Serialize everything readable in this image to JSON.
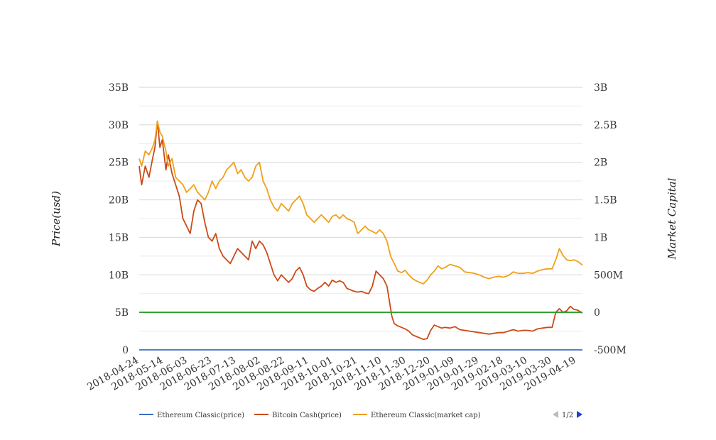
{
  "chart_data": {
    "type": "line",
    "title": "",
    "ylabel_left": "Price(usd)",
    "ylabel_right": "Market Capital",
    "x_tick_labels": [
      "2018-04-24",
      "2018-05-14",
      "2018-06-03",
      "2018-06-23",
      "2018-07-13",
      "2018-08-02",
      "2018-08-22",
      "2018-09-11",
      "2018-10-01",
      "2018-10-21",
      "2018-11-10",
      "2018-11-30",
      "2018-12-20",
      "2019-01-09",
      "2019-01-29",
      "2019-02-18",
      "2019-03-10",
      "2019-03-30",
      "2019-04-19"
    ],
    "x_range": [
      "2018-04-24",
      "2019-04-24"
    ],
    "left_axis": {
      "min": 0,
      "max": 35000000000,
      "ticks": [
        "0",
        "5B",
        "10B",
        "15B",
        "20B",
        "25B",
        "30B",
        "35B"
      ]
    },
    "right_axis": {
      "min": -500000000,
      "max": 3000000000,
      "ticks": [
        "-500M",
        "0",
        "500M",
        "1B",
        "1.5B",
        "2B",
        "2.5B",
        "3B"
      ]
    },
    "grid": true,
    "legend_position": "bottom",
    "series": [
      {
        "name": "Ethereum Classic(price)",
        "color": "#3a6fc4",
        "axis": "left",
        "points": [
          [
            "2018-04-24",
            15
          ],
          [
            "2019-04-24",
            5
          ]
        ]
      },
      {
        "name": "Bitcoin Cash(price)",
        "color": "#cc4a16",
        "axis": "left",
        "points": [
          [
            "2018-04-24",
            24500000000
          ],
          [
            "2018-04-26",
            22000000000
          ],
          [
            "2018-04-29",
            24500000000
          ],
          [
            "2018-05-02",
            23000000000
          ],
          [
            "2018-05-05",
            25500000000
          ],
          [
            "2018-05-07",
            27000000000
          ],
          [
            "2018-05-09",
            30500000000
          ],
          [
            "2018-05-11",
            27000000000
          ],
          [
            "2018-05-13",
            28000000000
          ],
          [
            "2018-05-16",
            24000000000
          ],
          [
            "2018-05-18",
            26000000000
          ],
          [
            "2018-05-21",
            23500000000
          ],
          [
            "2018-05-24",
            22000000000
          ],
          [
            "2018-05-27",
            20500000000
          ],
          [
            "2018-05-30",
            17500000000
          ],
          [
            "2018-06-02",
            16500000000
          ],
          [
            "2018-06-05",
            15500000000
          ],
          [
            "2018-06-08",
            18500000000
          ],
          [
            "2018-06-11",
            20000000000
          ],
          [
            "2018-06-14",
            19500000000
          ],
          [
            "2018-06-17",
            17000000000
          ],
          [
            "2018-06-20",
            15000000000
          ],
          [
            "2018-06-23",
            14500000000
          ],
          [
            "2018-06-26",
            15500000000
          ],
          [
            "2018-06-29",
            13500000000
          ],
          [
            "2018-07-02",
            12500000000
          ],
          [
            "2018-07-05",
            12000000000
          ],
          [
            "2018-07-08",
            11500000000
          ],
          [
            "2018-07-11",
            12500000000
          ],
          [
            "2018-07-14",
            13500000000
          ],
          [
            "2018-07-17",
            13000000000
          ],
          [
            "2018-07-20",
            12500000000
          ],
          [
            "2018-07-23",
            12000000000
          ],
          [
            "2018-07-26",
            14500000000
          ],
          [
            "2018-07-29",
            13500000000
          ],
          [
            "2018-08-01",
            14500000000
          ],
          [
            "2018-08-04",
            14000000000
          ],
          [
            "2018-08-07",
            13000000000
          ],
          [
            "2018-08-10",
            11500000000
          ],
          [
            "2018-08-13",
            10000000000
          ],
          [
            "2018-08-16",
            9200000000
          ],
          [
            "2018-08-19",
            10000000000
          ],
          [
            "2018-08-22",
            9500000000
          ],
          [
            "2018-08-25",
            9000000000
          ],
          [
            "2018-08-28",
            9500000000
          ],
          [
            "2018-08-31",
            10500000000
          ],
          [
            "2018-09-03",
            11000000000
          ],
          [
            "2018-09-06",
            10000000000
          ],
          [
            "2018-09-09",
            8500000000
          ],
          [
            "2018-09-12",
            8000000000
          ],
          [
            "2018-09-15",
            7800000000
          ],
          [
            "2018-09-18",
            8200000000
          ],
          [
            "2018-09-21",
            8500000000
          ],
          [
            "2018-09-24",
            9000000000
          ],
          [
            "2018-09-27",
            8500000000
          ],
          [
            "2018-09-30",
            9300000000
          ],
          [
            "2018-10-03",
            9000000000
          ],
          [
            "2018-10-06",
            9200000000
          ],
          [
            "2018-10-09",
            9000000000
          ],
          [
            "2018-10-12",
            8200000000
          ],
          [
            "2018-10-15",
            8000000000
          ],
          [
            "2018-10-18",
            7800000000
          ],
          [
            "2018-10-21",
            7700000000
          ],
          [
            "2018-10-24",
            7800000000
          ],
          [
            "2018-10-27",
            7600000000
          ],
          [
            "2018-10-30",
            7500000000
          ],
          [
            "2018-11-02",
            8500000000
          ],
          [
            "2018-11-05",
            10500000000
          ],
          [
            "2018-11-08",
            10000000000
          ],
          [
            "2018-11-11",
            9500000000
          ],
          [
            "2018-11-14",
            8500000000
          ],
          [
            "2018-11-16",
            6500000000
          ],
          [
            "2018-11-18",
            4500000000
          ],
          [
            "2018-11-20",
            3500000000
          ],
          [
            "2018-11-23",
            3200000000
          ],
          [
            "2018-11-26",
            3000000000
          ],
          [
            "2018-11-29",
            2800000000
          ],
          [
            "2018-12-02",
            2500000000
          ],
          [
            "2018-12-05",
            2000000000
          ],
          [
            "2018-12-08",
            1800000000
          ],
          [
            "2018-12-11",
            1600000000
          ],
          [
            "2018-12-14",
            1400000000
          ],
          [
            "2018-12-17",
            1500000000
          ],
          [
            "2018-12-20",
            2600000000
          ],
          [
            "2018-12-23",
            3300000000
          ],
          [
            "2018-12-26",
            3100000000
          ],
          [
            "2018-12-29",
            2900000000
          ],
          [
            "2019-01-01",
            3000000000
          ],
          [
            "2019-01-05",
            2900000000
          ],
          [
            "2019-01-09",
            3100000000
          ],
          [
            "2019-01-13",
            2700000000
          ],
          [
            "2019-01-17",
            2600000000
          ],
          [
            "2019-01-21",
            2500000000
          ],
          [
            "2019-01-25",
            2400000000
          ],
          [
            "2019-01-29",
            2300000000
          ],
          [
            "2019-02-02",
            2200000000
          ],
          [
            "2019-02-06",
            2100000000
          ],
          [
            "2019-02-10",
            2200000000
          ],
          [
            "2019-02-14",
            2300000000
          ],
          [
            "2019-02-18",
            2300000000
          ],
          [
            "2019-02-22",
            2500000000
          ],
          [
            "2019-02-26",
            2700000000
          ],
          [
            "2019-03-02",
            2500000000
          ],
          [
            "2019-03-06",
            2600000000
          ],
          [
            "2019-03-10",
            2600000000
          ],
          [
            "2019-03-14",
            2500000000
          ],
          [
            "2019-03-18",
            2800000000
          ],
          [
            "2019-03-22",
            2900000000
          ],
          [
            "2019-03-26",
            3000000000
          ],
          [
            "2019-03-30",
            3000000000
          ],
          [
            "2019-04-02",
            5000000000
          ],
          [
            "2019-04-05",
            5500000000
          ],
          [
            "2019-04-08",
            5000000000
          ],
          [
            "2019-04-11",
            5200000000
          ],
          [
            "2019-04-14",
            5800000000
          ],
          [
            "2019-04-17",
            5400000000
          ],
          [
            "2019-04-20",
            5300000000
          ],
          [
            "2019-04-24",
            4900000000
          ]
        ]
      },
      {
        "name": "Ethereum Classic(market cap)",
        "color": "#f0a01a",
        "axis": "right",
        "points": [
          [
            "2018-04-24",
            2050000000
          ],
          [
            "2018-04-26",
            1950000000
          ],
          [
            "2018-04-29",
            2150000000
          ],
          [
            "2018-05-02",
            2100000000
          ],
          [
            "2018-05-05",
            2200000000
          ],
          [
            "2018-05-07",
            2300000000
          ],
          [
            "2018-05-09",
            2550000000
          ],
          [
            "2018-05-11",
            2400000000
          ],
          [
            "2018-05-13",
            2350000000
          ],
          [
            "2018-05-16",
            2150000000
          ],
          [
            "2018-05-18",
            1950000000
          ],
          [
            "2018-05-21",
            2050000000
          ],
          [
            "2018-05-24",
            1800000000
          ],
          [
            "2018-05-27",
            1750000000
          ],
          [
            "2018-05-30",
            1700000000
          ],
          [
            "2018-06-02",
            1600000000
          ],
          [
            "2018-06-05",
            1650000000
          ],
          [
            "2018-06-08",
            1700000000
          ],
          [
            "2018-06-11",
            1600000000
          ],
          [
            "2018-06-14",
            1550000000
          ],
          [
            "2018-06-17",
            1500000000
          ],
          [
            "2018-06-20",
            1600000000
          ],
          [
            "2018-06-23",
            1750000000
          ],
          [
            "2018-06-26",
            1650000000
          ],
          [
            "2018-06-29",
            1750000000
          ],
          [
            "2018-07-02",
            1800000000
          ],
          [
            "2018-07-05",
            1900000000
          ],
          [
            "2018-07-08",
            1950000000
          ],
          [
            "2018-07-11",
            2000000000
          ],
          [
            "2018-07-14",
            1850000000
          ],
          [
            "2018-07-17",
            1900000000
          ],
          [
            "2018-07-20",
            1800000000
          ],
          [
            "2018-07-23",
            1750000000
          ],
          [
            "2018-07-26",
            1800000000
          ],
          [
            "2018-07-29",
            1950000000
          ],
          [
            "2018-08-01",
            2000000000
          ],
          [
            "2018-08-04",
            1750000000
          ],
          [
            "2018-08-07",
            1650000000
          ],
          [
            "2018-08-10",
            1500000000
          ],
          [
            "2018-08-13",
            1400000000
          ],
          [
            "2018-08-16",
            1350000000
          ],
          [
            "2018-08-19",
            1450000000
          ],
          [
            "2018-08-22",
            1400000000
          ],
          [
            "2018-08-25",
            1350000000
          ],
          [
            "2018-08-28",
            1450000000
          ],
          [
            "2018-08-31",
            1500000000
          ],
          [
            "2018-09-03",
            1550000000
          ],
          [
            "2018-09-06",
            1450000000
          ],
          [
            "2018-09-09",
            1300000000
          ],
          [
            "2018-09-12",
            1250000000
          ],
          [
            "2018-09-15",
            1200000000
          ],
          [
            "2018-09-18",
            1250000000
          ],
          [
            "2018-09-21",
            1300000000
          ],
          [
            "2018-09-24",
            1250000000
          ],
          [
            "2018-09-27",
            1200000000
          ],
          [
            "2018-09-30",
            1280000000
          ],
          [
            "2018-10-03",
            1300000000
          ],
          [
            "2018-10-06",
            1250000000
          ],
          [
            "2018-10-09",
            1300000000
          ],
          [
            "2018-10-12",
            1250000000
          ],
          [
            "2018-10-15",
            1230000000
          ],
          [
            "2018-10-18",
            1200000000
          ],
          [
            "2018-10-21",
            1050000000
          ],
          [
            "2018-10-24",
            1100000000
          ],
          [
            "2018-10-27",
            1150000000
          ],
          [
            "2018-10-30",
            1100000000
          ],
          [
            "2018-11-02",
            1080000000
          ],
          [
            "2018-11-05",
            1050000000
          ],
          [
            "2018-11-08",
            1100000000
          ],
          [
            "2018-11-11",
            1050000000
          ],
          [
            "2018-11-14",
            950000000
          ],
          [
            "2018-11-17",
            750000000
          ],
          [
            "2018-11-20",
            650000000
          ],
          [
            "2018-11-23",
            550000000
          ],
          [
            "2018-11-26",
            530000000
          ],
          [
            "2018-11-29",
            560000000
          ],
          [
            "2018-12-02",
            500000000
          ],
          [
            "2018-12-05",
            450000000
          ],
          [
            "2018-12-08",
            420000000
          ],
          [
            "2018-12-11",
            400000000
          ],
          [
            "2018-12-14",
            380000000
          ],
          [
            "2018-12-17",
            430000000
          ],
          [
            "2018-12-20",
            500000000
          ],
          [
            "2018-12-23",
            550000000
          ],
          [
            "2018-12-26",
            620000000
          ],
          [
            "2018-12-29",
            580000000
          ],
          [
            "2019-01-01",
            600000000
          ],
          [
            "2019-01-05",
            640000000
          ],
          [
            "2019-01-09",
            620000000
          ],
          [
            "2019-01-13",
            600000000
          ],
          [
            "2019-01-17",
            540000000
          ],
          [
            "2019-01-21",
            530000000
          ],
          [
            "2019-01-25",
            520000000
          ],
          [
            "2019-01-29",
            500000000
          ],
          [
            "2019-02-02",
            470000000
          ],
          [
            "2019-02-06",
            450000000
          ],
          [
            "2019-02-10",
            470000000
          ],
          [
            "2019-02-14",
            480000000
          ],
          [
            "2019-02-18",
            470000000
          ],
          [
            "2019-02-22",
            490000000
          ],
          [
            "2019-02-26",
            540000000
          ],
          [
            "2019-03-02",
            520000000
          ],
          [
            "2019-03-06",
            520000000
          ],
          [
            "2019-03-10",
            530000000
          ],
          [
            "2019-03-14",
            520000000
          ],
          [
            "2019-03-18",
            550000000
          ],
          [
            "2019-03-22",
            570000000
          ],
          [
            "2019-03-26",
            580000000
          ],
          [
            "2019-03-30",
            580000000
          ],
          [
            "2019-04-02",
            700000000
          ],
          [
            "2019-04-05",
            850000000
          ],
          [
            "2019-04-08",
            760000000
          ],
          [
            "2019-04-11",
            700000000
          ],
          [
            "2019-04-14",
            690000000
          ],
          [
            "2019-04-17",
            700000000
          ],
          [
            "2019-04-20",
            680000000
          ],
          [
            "2019-04-24",
            630000000
          ]
        ]
      },
      {
        "name": "",
        "color": "#2e9e2e",
        "axis": "right",
        "points": [
          [
            "2018-04-24",
            0
          ],
          [
            "2019-04-24",
            0
          ]
        ]
      }
    ],
    "pager": {
      "label": "1/2"
    }
  }
}
